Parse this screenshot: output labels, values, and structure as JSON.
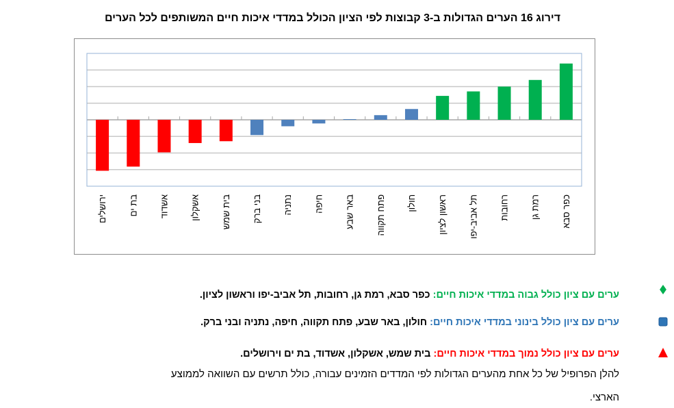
{
  "chart_data": {
    "type": "bar",
    "title": "דירוג 16 הערים הגדולות ב-3 קבוצות לפי הציון הכולל במדדי איכות חיים המשותפים לכל הערים",
    "xlabel": "",
    "ylabel": "",
    "ylim": [
      -4,
      4
    ],
    "grid": true,
    "y_tick_labels_shown": false,
    "legend": "none",
    "categories": [
      "ירושלים",
      "בת ים",
      "אשדוד",
      "אשקלון",
      "בית שמש",
      "בני ברק",
      "נתניה",
      "חיפה",
      "באר שבע",
      "פתח תקווה",
      "חולון",
      "ראשון לציון",
      "תל אביב-יפו",
      "רחובות",
      "רמת גן",
      "כפר סבא"
    ],
    "values": [
      -3.07,
      -2.82,
      -1.96,
      -1.4,
      -1.29,
      -0.92,
      -0.39,
      -0.22,
      0.04,
      0.28,
      0.65,
      1.44,
      1.71,
      2.0,
      2.4,
      3.39
    ],
    "groups": [
      "low",
      "low",
      "low",
      "low",
      "low",
      "mid",
      "mid",
      "mid",
      "mid",
      "mid",
      "mid",
      "high",
      "high",
      "high",
      "high",
      "high"
    ],
    "colors": {
      "low": "#FF0000",
      "mid": "#4F81BD",
      "high": "#00B050"
    }
  },
  "legend_text": {
    "high": {
      "label": "ערים עם ציון כולל גבוה במדדי איכות חיים:",
      "cities": " כפר סבא, רמת גן, רחובות, תל אביב-יפו וראשון לציון.",
      "color": "#00B050",
      "icon": "diamond-icon"
    },
    "mid": {
      "label": "ערים עם ציון כולל בינוני במדדי איכות חיים:",
      "cities": " חולון, באר שבע, פתח תקווה, חיפה, נתניה ובני ברק.",
      "color": "#2E75B6",
      "icon": "square-icon"
    },
    "low": {
      "label": "ערים עם ציון כולל נמוך במדדי איכות חיים:",
      "cities": " בית שמש, אשקלון, אשדוד, בת ים וירושלים.",
      "color": "#FF0000",
      "icon": "triangle-icon"
    }
  },
  "paragraph": {
    "line1": "להלן הפרופיל של כל אחת מהערים הגדולות לפי המדדים הזמינים עבורה, כולל תרשים עם השוואה לממוצע",
    "line2": "הארצי."
  }
}
